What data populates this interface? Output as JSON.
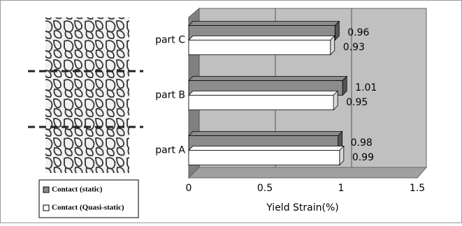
{
  "chart_data": {
    "type": "bar",
    "orientation": "horizontal",
    "x_label": "Yield Strain(%)",
    "categories": [
      "part A",
      "part B",
      "part C"
    ],
    "series": [
      {
        "name": "Contact (static)",
        "color": "#8c8c8c",
        "values": [
          0.98,
          1.01,
          0.96
        ]
      },
      {
        "name": "Contact (Quasi-static)",
        "color": "#ffffff",
        "values": [
          0.99,
          0.95,
          0.93
        ]
      }
    ],
    "xlim": [
      0,
      1.5
    ],
    "xticks": [
      0,
      0.5,
      1,
      1.5
    ],
    "grid": true,
    "legend": "bottom-left"
  }
}
